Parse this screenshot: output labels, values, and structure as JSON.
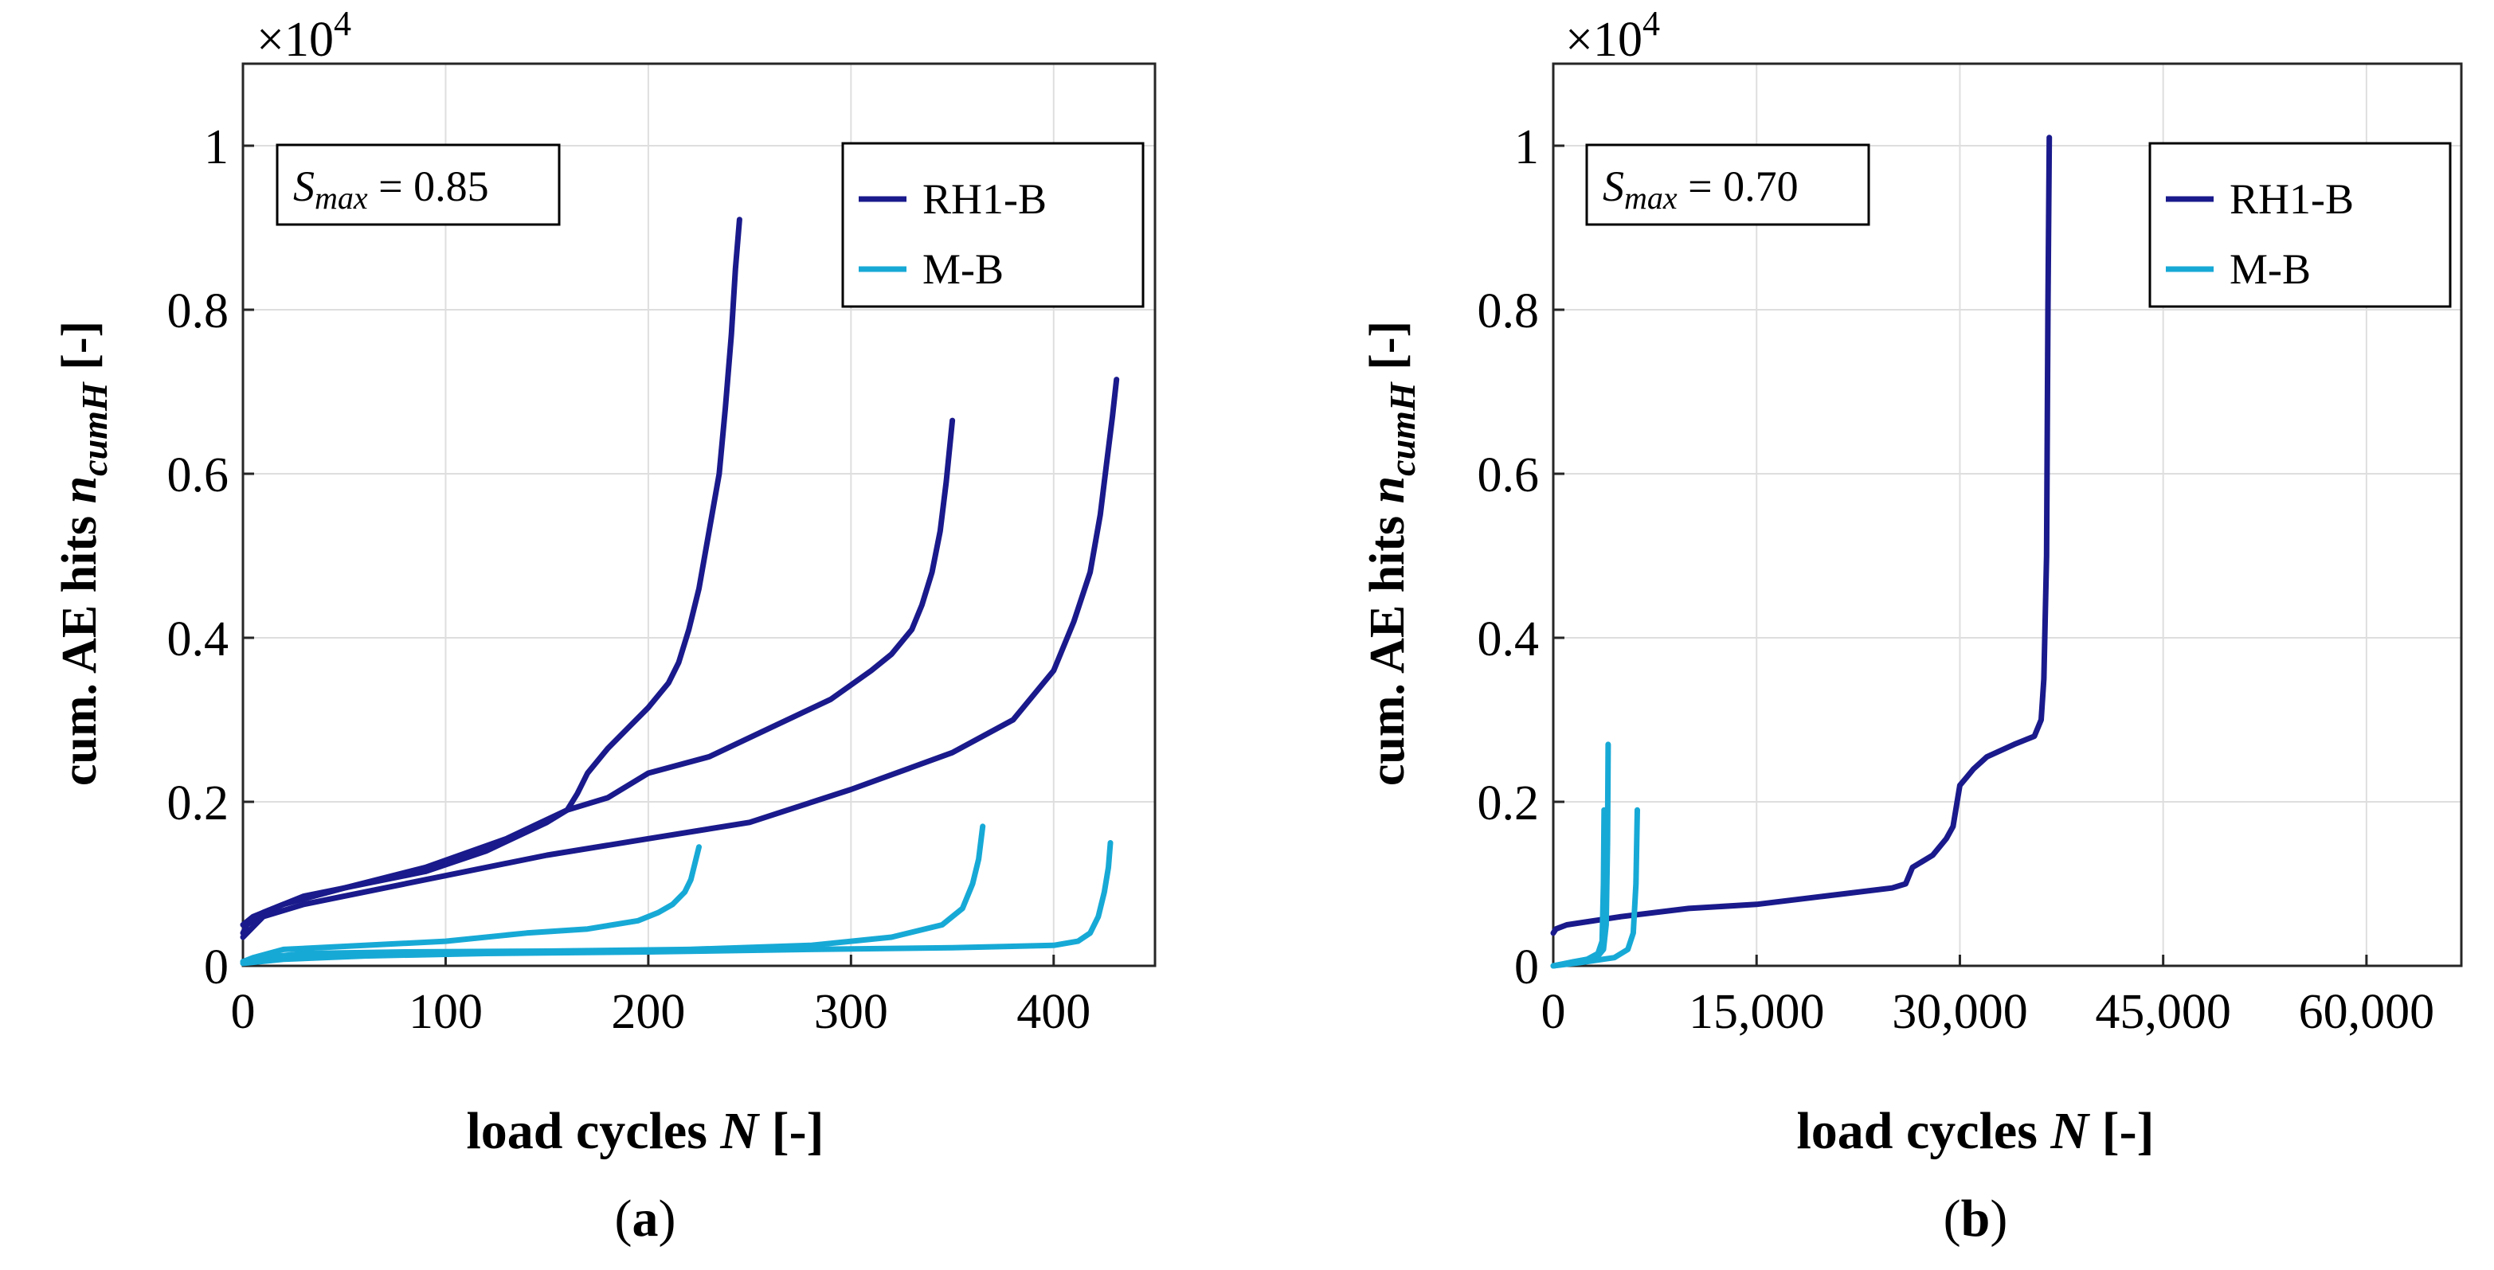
{
  "chart_data": [
    {
      "type": "line",
      "panel_label": "(a)",
      "panel_letter": "a",
      "annotation": {
        "symbol": "S",
        "subscript": "max",
        "text": " = 0.85"
      },
      "xlabel": {
        "prefix": "load cycles ",
        "italic": "N",
        "suffix": " [-]"
      },
      "ylabel": {
        "prefix": "cum. AE hits ",
        "italic": "n",
        "subscript": "cumH",
        "suffix": " [-]"
      },
      "y_multiplier": {
        "base": "×10",
        "exponent": "4"
      },
      "xlim": [
        0,
        450
      ],
      "ylim": [
        0,
        1.1
      ],
      "x_ticks": [
        0,
        100,
        200,
        300,
        400
      ],
      "x_tick_labels": [
        "0",
        "100",
        "200",
        "300",
        "400"
      ],
      "y_ticks": [
        0,
        0.2,
        0.4,
        0.6,
        0.8,
        1
      ],
      "y_tick_labels": [
        "0",
        "0.2",
        "0.4",
        "0.6",
        "0.8",
        "1"
      ],
      "grid": true,
      "legend": {
        "position": "top-right",
        "entries": [
          {
            "label": "RH1-B",
            "color": "#1a1a8c"
          },
          {
            "label": "M-B",
            "color": "#17a9d6"
          }
        ]
      },
      "series": [
        {
          "name": "RH1-B",
          "color": "#1a1a8c",
          "x": [
            0,
            2,
            10,
            30,
            60,
            90,
            120,
            150,
            160,
            165,
            170,
            180,
            190,
            200,
            210,
            215,
            220,
            225,
            230,
            235,
            238,
            241,
            243,
            245
          ],
          "y": [
            0.04,
            0.05,
            0.065,
            0.085,
            0.1,
            0.115,
            0.14,
            0.175,
            0.19,
            0.21,
            0.235,
            0.265,
            0.29,
            0.315,
            0.345,
            0.37,
            0.41,
            0.46,
            0.53,
            0.6,
            0.68,
            0.77,
            0.85,
            0.91
          ]
        },
        {
          "name": "RH1-B",
          "color": "#1a1a8c",
          "x": [
            0,
            5,
            20,
            50,
            90,
            130,
            160,
            180,
            200,
            230,
            260,
            290,
            310,
            320,
            330,
            335,
            340,
            344,
            347,
            350
          ],
          "y": [
            0.05,
            0.06,
            0.075,
            0.095,
            0.12,
            0.155,
            0.19,
            0.205,
            0.235,
            0.255,
            0.29,
            0.325,
            0.36,
            0.38,
            0.41,
            0.44,
            0.48,
            0.53,
            0.59,
            0.665
          ]
        },
        {
          "name": "RH1-B",
          "color": "#1a1a8c",
          "x": [
            0,
            10,
            30,
            60,
            100,
            150,
            200,
            250,
            300,
            350,
            380,
            400,
            410,
            418,
            423,
            426,
            429,
            431
          ],
          "y": [
            0.035,
            0.06,
            0.075,
            0.09,
            0.11,
            0.135,
            0.155,
            0.175,
            0.215,
            0.26,
            0.3,
            0.36,
            0.42,
            0.48,
            0.55,
            0.61,
            0.67,
            0.715
          ]
        },
        {
          "name": "M-B",
          "color": "#17a9d6",
          "x": [
            0,
            5,
            20,
            60,
            100,
            140,
            170,
            195,
            205,
            212,
            218,
            221,
            223,
            225
          ],
          "y": [
            0.005,
            0.01,
            0.02,
            0.025,
            0.03,
            0.04,
            0.045,
            0.055,
            0.065,
            0.075,
            0.09,
            0.105,
            0.125,
            0.145
          ]
        },
        {
          "name": "M-B",
          "color": "#17a9d6",
          "x": [
            0,
            10,
            30,
            80,
            150,
            220,
            280,
            320,
            345,
            355,
            360,
            363,
            365
          ],
          "y": [
            0.005,
            0.01,
            0.015,
            0.017,
            0.018,
            0.02,
            0.025,
            0.035,
            0.05,
            0.07,
            0.1,
            0.13,
            0.17
          ]
        },
        {
          "name": "M-B",
          "color": "#17a9d6",
          "x": [
            0,
            20,
            60,
            120,
            200,
            280,
            350,
            400,
            412,
            418,
            422,
            425,
            427,
            428
          ],
          "y": [
            0.003,
            0.008,
            0.012,
            0.015,
            0.017,
            0.02,
            0.022,
            0.025,
            0.03,
            0.04,
            0.06,
            0.09,
            0.12,
            0.15
          ]
        }
      ]
    },
    {
      "type": "line",
      "panel_label": "(b)",
      "panel_letter": "b",
      "annotation": {
        "symbol": "S",
        "subscript": "max",
        "text": " = 0.70"
      },
      "xlabel": {
        "prefix": "load cycles ",
        "italic": "N",
        "suffix": " [-]"
      },
      "ylabel": {
        "prefix": "cum. AE hits ",
        "italic": "n",
        "subscript": "cumH",
        "suffix": " [-]"
      },
      "y_multiplier": {
        "base": "×10",
        "exponent": "4"
      },
      "xlim": [
        0,
        67000
      ],
      "ylim": [
        0,
        1.1
      ],
      "x_ticks": [
        0,
        15000,
        30000,
        45000,
        60000
      ],
      "x_tick_labels": [
        "0",
        "15,000",
        "30,000",
        "45,000",
        "60,000"
      ],
      "y_ticks": [
        0,
        0.2,
        0.4,
        0.6,
        0.8,
        1
      ],
      "y_tick_labels": [
        "0",
        "0.2",
        "0.4",
        "0.6",
        "0.8",
        "1"
      ],
      "grid": true,
      "legend": {
        "position": "top-right",
        "entries": [
          {
            "label": "RH1-B",
            "color": "#1a1a8c"
          },
          {
            "label": "M-B",
            "color": "#17a9d6"
          }
        ]
      },
      "series": [
        {
          "name": "RH1-B",
          "color": "#1a1a8c",
          "x": [
            0,
            200,
            1000,
            5000,
            10000,
            15000,
            20000,
            25000,
            26000,
            26500,
            27000,
            28000,
            29000,
            29500,
            30000,
            30500,
            31000,
            32000,
            34000,
            35500,
            36000,
            36200,
            36400,
            36500,
            36600
          ],
          "y": [
            0.04,
            0.045,
            0.05,
            0.06,
            0.07,
            0.075,
            0.085,
            0.095,
            0.1,
            0.12,
            0.125,
            0.135,
            0.155,
            0.17,
            0.22,
            0.23,
            0.24,
            0.255,
            0.27,
            0.28,
            0.3,
            0.35,
            0.5,
            0.8,
            1.01
          ]
        },
        {
          "name": "M-B",
          "color": "#17a9d6",
          "x": [
            0,
            1000,
            2500,
            3300,
            3600,
            3700,
            3750
          ],
          "y": [
            0,
            0.003,
            0.008,
            0.015,
            0.03,
            0.1,
            0.19
          ]
        },
        {
          "name": "M-B",
          "color": "#17a9d6",
          "x": [
            0,
            1500,
            3200,
            3700,
            3900,
            4000,
            4050
          ],
          "y": [
            0,
            0.005,
            0.01,
            0.02,
            0.05,
            0.15,
            0.27
          ]
        },
        {
          "name": "M-B",
          "color": "#17a9d6",
          "x": [
            0,
            2000,
            4500,
            5500,
            5900,
            6100,
            6200
          ],
          "y": [
            0,
            0.004,
            0.01,
            0.02,
            0.04,
            0.1,
            0.19
          ]
        }
      ]
    }
  ]
}
